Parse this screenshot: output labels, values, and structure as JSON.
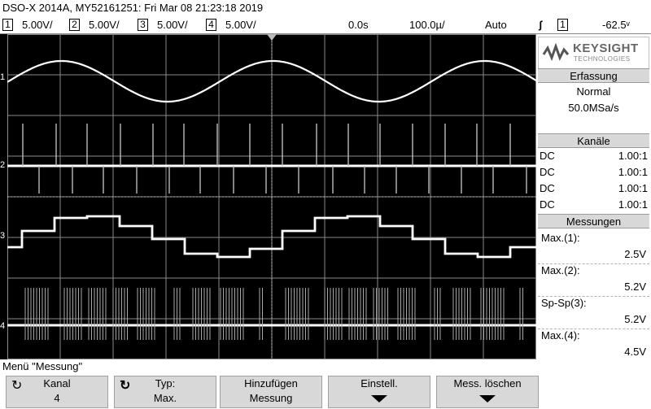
{
  "title": "DSO-X 2014A, MY52161251: Fri Mar 08 21:23:18 2019",
  "status": {
    "channels": [
      {
        "num": "1",
        "scale": "5.00V/"
      },
      {
        "num": "2",
        "scale": "5.00V/"
      },
      {
        "num": "3",
        "scale": "5.00V/"
      },
      {
        "num": "4",
        "scale": "5.00V/"
      }
    ],
    "time_delay": "0.0s",
    "time_scale": "100.0µ/",
    "trigger_mode": "Auto",
    "trigger_slope_icon": "rising-edge-icon",
    "trigger_source": "1",
    "trigger_level": "-62.5ᵛ"
  },
  "brand": {
    "name": "KEYSIGHT",
    "sub": "TECHNOLOGIES"
  },
  "acquisition": {
    "header": "Erfassung",
    "mode": "Normal",
    "rate": "50.0MSa/s"
  },
  "channels_panel": {
    "header": "Kanäle",
    "rows": [
      {
        "coupling": "DC",
        "probe": "1.00:1"
      },
      {
        "coupling": "DC",
        "probe": "1.00:1"
      },
      {
        "coupling": "DC",
        "probe": "1.00:1"
      },
      {
        "coupling": "DC",
        "probe": "1.00:1"
      }
    ]
  },
  "measurements": {
    "header": "Messungen",
    "items": [
      {
        "label": "Max.(1):",
        "value": "2.5V"
      },
      {
        "label": "Max.(2):",
        "value": "5.2V"
      },
      {
        "label": "Sp-Sp(3):",
        "value": "5.2V"
      },
      {
        "label": "Max.(4):",
        "value": "4.5V"
      }
    ]
  },
  "channel_markers": [
    "1",
    "2",
    "3",
    "4"
  ],
  "menu": {
    "title": "Menü \"Messung\"",
    "softkeys": [
      {
        "line1": "Kanal",
        "line2": "4",
        "icon": "rotate-knob-icon"
      },
      {
        "line1": "Typ:",
        "line2": "Max.",
        "icon": "select-knob-icon"
      },
      {
        "line1": "Hinzufügen",
        "line2": "Messung"
      },
      {
        "line1": "Einstell.",
        "submenu": true
      },
      {
        "line1": "Mess. löschen",
        "submenu": true
      }
    ]
  },
  "colors": {
    "trace": "#ffffff",
    "grid": "#8a8a8a",
    "panel_header": "#d8d8d8"
  },
  "traces": {
    "ch1": {
      "type": "sine",
      "period_divs": 4,
      "amplitude_v": 2.5,
      "offset_v": 0
    },
    "ch2": {
      "type": "pulse-train",
      "max_v": 5.2
    },
    "ch3": {
      "type": "staircase",
      "peak_to_peak_v": 5.2
    },
    "ch4": {
      "type": "serial-burst",
      "max_v": 4.5
    }
  }
}
